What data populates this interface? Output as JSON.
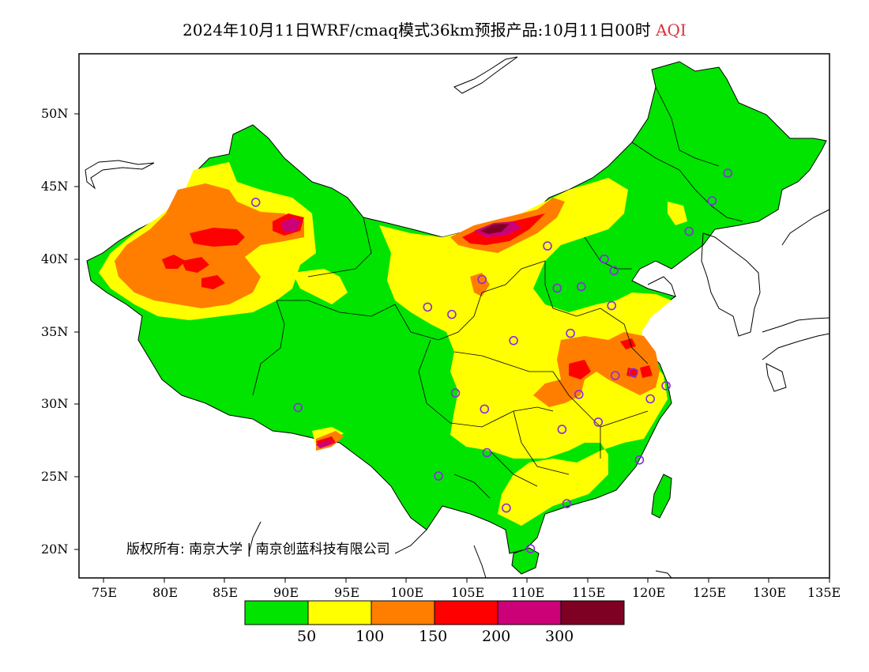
{
  "title": {
    "main": "2024年10月11日WRF/cmaq模式36km预报产品:10月11日00时",
    "variable": "AQI"
  },
  "axes": {
    "lat_labels": [
      "50N",
      "45N",
      "40N",
      "35N",
      "30N",
      "25N",
      "20N"
    ],
    "lon_labels": [
      "75E",
      "80E",
      "85E",
      "90E",
      "95E",
      "100E",
      "105E",
      "110E",
      "115E",
      "120E",
      "125E",
      "130E",
      "135E"
    ]
  },
  "copyright": "版权所有: 南京大学 | 南京创蓝科技有限公司",
  "legend": {
    "colors": [
      "#00e400",
      "#ffff00",
      "#ff7e00",
      "#ff0000",
      "#cc0077",
      "#7e0023"
    ],
    "labels": [
      "50",
      "100",
      "150",
      "200",
      "300"
    ]
  },
  "colors": {
    "green": "#00e400",
    "yellow": "#ffff00",
    "orange": "#ff7e00",
    "red": "#ff0000",
    "purple": "#cc0077",
    "maroon": "#7e0023",
    "station_marker": "#8a2be2"
  },
  "map": {
    "extent": {
      "lon_min": 73,
      "lon_max": 135,
      "lat_min": 18,
      "lat_max": 54
    },
    "stations": [
      {
        "lon": 87.6,
        "lat": 43.8
      },
      {
        "lon": 91.1,
        "lat": 29.7
      },
      {
        "lon": 101.8,
        "lat": 36.6
      },
      {
        "lon": 103.8,
        "lat": 36.1
      },
      {
        "lon": 106.3,
        "lat": 38.5
      },
      {
        "lon": 111.7,
        "lat": 40.8
      },
      {
        "lon": 112.5,
        "lat": 37.9
      },
      {
        "lon": 114.5,
        "lat": 38.0
      },
      {
        "lon": 116.4,
        "lat": 39.9
      },
      {
        "lon": 117.2,
        "lat": 39.1
      },
      {
        "lon": 117.0,
        "lat": 36.7
      },
      {
        "lon": 113.6,
        "lat": 34.8
      },
      {
        "lon": 108.9,
        "lat": 34.3
      },
      {
        "lon": 104.1,
        "lat": 30.7
      },
      {
        "lon": 106.5,
        "lat": 29.6
      },
      {
        "lon": 114.3,
        "lat": 30.6
      },
      {
        "lon": 117.3,
        "lat": 31.9
      },
      {
        "lon": 118.8,
        "lat": 32.1
      },
      {
        "lon": 120.2,
        "lat": 30.3
      },
      {
        "lon": 121.5,
        "lat": 31.2
      },
      {
        "lon": 115.9,
        "lat": 28.7
      },
      {
        "lon": 112.9,
        "lat": 28.2
      },
      {
        "lon": 119.3,
        "lat": 26.1
      },
      {
        "lon": 106.7,
        "lat": 26.6
      },
      {
        "lon": 102.7,
        "lat": 25.0
      },
      {
        "lon": 108.3,
        "lat": 22.8
      },
      {
        "lon": 113.3,
        "lat": 23.1
      },
      {
        "lon": 110.3,
        "lat": 20.0
      },
      {
        "lon": 123.4,
        "lat": 41.8
      },
      {
        "lon": 125.3,
        "lat": 43.9
      },
      {
        "lon": 126.6,
        "lat": 45.8
      }
    ]
  }
}
